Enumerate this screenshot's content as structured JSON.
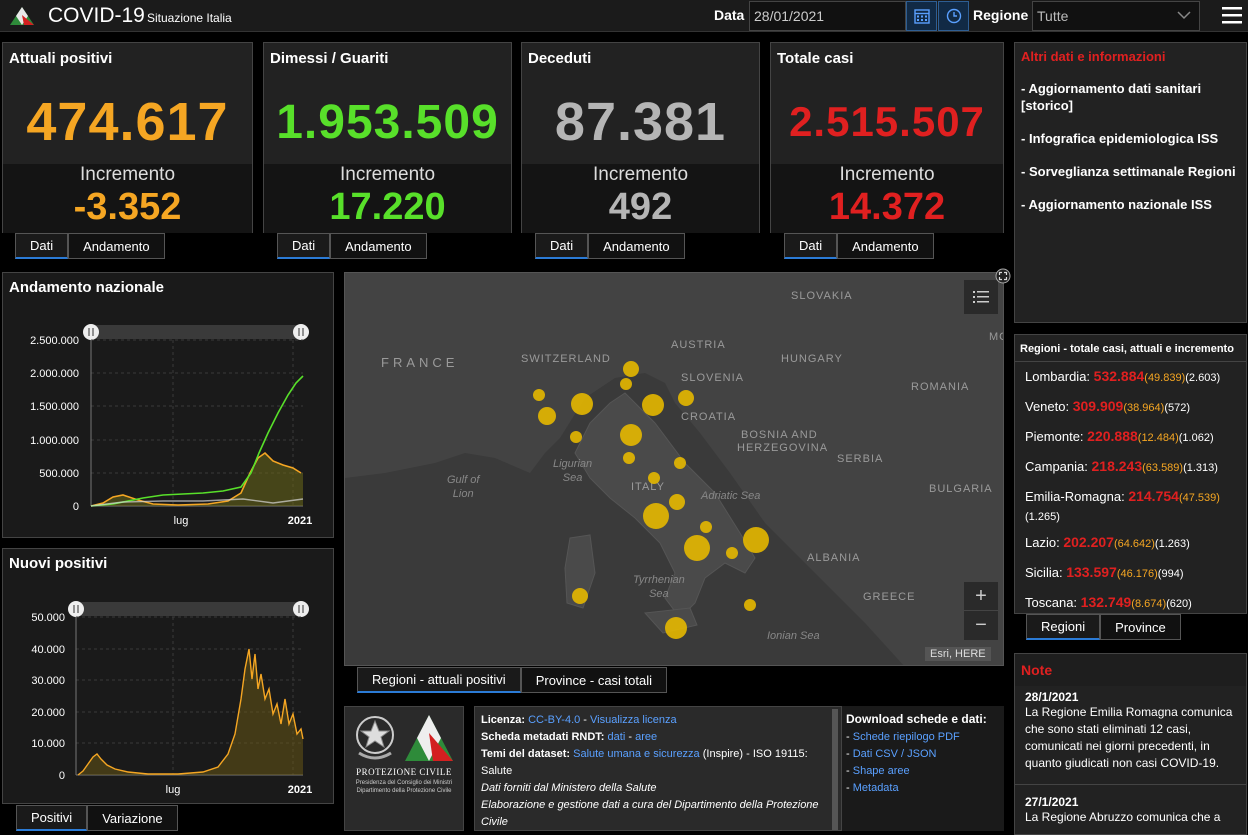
{
  "header": {
    "title": "COVID-19",
    "subtitle": "Situazione Italia",
    "date_label": "Data",
    "date_value": "28/01/2021",
    "region_label": "Regione",
    "region_value": "Tutte"
  },
  "cards": [
    {
      "title": "Attuali positivi",
      "value": "474.617",
      "inc_label": "Incremento",
      "increment": "-3.352",
      "color": "#f5a623",
      "tabs": [
        "Dati",
        "Andamento"
      ]
    },
    {
      "title": "Dimessi / Guariti",
      "value": "1.953.509",
      "inc_label": "Incremento",
      "increment": "17.220",
      "color": "#58e02a",
      "tabs": [
        "Dati",
        "Andamento"
      ]
    },
    {
      "title": "Deceduti",
      "value": "87.381",
      "inc_label": "Incremento",
      "increment": "492",
      "color": "#b5b5b5",
      "tabs": [
        "Dati",
        "Andamento"
      ]
    },
    {
      "title": "Totale casi",
      "value": "2.515.507",
      "inc_label": "Incremento",
      "increment": "14.372",
      "color": "#e02020",
      "tabs": [
        "Dati",
        "Andamento"
      ]
    }
  ],
  "andamento": {
    "title": "Andamento nazionale",
    "y_ticks": [
      "2.500.000",
      "2.000.000",
      "1.500.000",
      "1.000.000",
      "500.000",
      "0"
    ],
    "x_ticks": [
      "lug",
      "2021"
    ]
  },
  "nuovi": {
    "title": "Nuovi positivi",
    "y_ticks": [
      "50.000",
      "40.000",
      "30.000",
      "20.000",
      "10.000",
      "0"
    ],
    "x_ticks": [
      "lug",
      "2021"
    ],
    "tabs": [
      "Positivi",
      "Variazione"
    ]
  },
  "map": {
    "countries": [
      "FRANCE",
      "SWITZERLAND",
      "AUSTRIA",
      "SLOVAKIA",
      "HUNGARY",
      "SLOVENIA",
      "CROATIA",
      "ROMANIA",
      "BOSNIA AND",
      "HERZEGOVINA",
      "SERBIA",
      "BULGARIA",
      "ITALY",
      "ALBANIA",
      "GREECE",
      "MO"
    ],
    "seas": [
      "Gulf of",
      "Lion",
      "Ligurian",
      "Sea",
      "Adriatic Sea",
      "Tyrrhenian",
      "Sea",
      "Ionian Sea"
    ],
    "attribution": "Esri, HERE",
    "zoom_in": "+",
    "zoom_out": "−",
    "tabs": [
      "Regioni - attuali positivi",
      "Province - casi totali"
    ]
  },
  "info": {
    "licenza_label": "Licenza:",
    "licenza_value": "CC-BY-4.0",
    "licenza_link": "Visualizza licenza",
    "rndt_label": "Scheda metadati RNDT:",
    "rndt_dati": "dati",
    "rndt_aree": "aree",
    "temi_label": "Temi del dataset:",
    "temi_link": "Salute umana e sicurezza",
    "temi_rest": "(Inspire) - ISO 19115:",
    "temi_salute": "Salute",
    "fonte": "Dati forniti dal Ministero della Salute",
    "elaborazione": "Elaborazione e gestione dati a cura del Dipartimento della Protezione Civile"
  },
  "logos": {
    "pc_name": "PROTEZIONE CIVILE",
    "pc_sub1": "Presidenza del Consiglio dei Ministri",
    "pc_sub2": "Dipartimento della Protezione Civile"
  },
  "downloads": {
    "title": "Download schede e dati:",
    "items": [
      "Schede riepilogo PDF",
      "Dati CSV / JSON",
      "Shape aree",
      "Metadata"
    ]
  },
  "altri": {
    "title": "Altri dati e informazioni",
    "items": [
      "Aggiornamento dati sanitari [storico]",
      "Infografica epidemiologica ISS",
      "Sorveglianza settimanale Regioni",
      "Aggiornamento nazionale ISS"
    ]
  },
  "regioni": {
    "title": "Regioni - totale casi, attuali e incremento",
    "rows": [
      {
        "name": "Lombardia:",
        "total": "532.884",
        "attuali": "(49.839)",
        "inc": "(2.603)"
      },
      {
        "name": "Veneto:",
        "total": "309.909",
        "attuali": "(38.964)",
        "inc": "(572)"
      },
      {
        "name": "Piemonte:",
        "total": "220.888",
        "attuali": "(12.484)",
        "inc": "(1.062)"
      },
      {
        "name": "Campania:",
        "total": "218.243",
        "attuali": "(63.589)",
        "inc": "(1.313)"
      },
      {
        "name": "Emilia-Romagna:",
        "total": "214.754",
        "attuali": "(47.539)",
        "inc": "(1.265)"
      },
      {
        "name": "Lazio:",
        "total": "202.207",
        "attuali": "(64.642)",
        "inc": "(1.263)"
      },
      {
        "name": "Sicilia:",
        "total": "133.597",
        "attuali": "(46.176)",
        "inc": "(994)"
      },
      {
        "name": "Toscana:",
        "total": "132.749",
        "attuali": "(8.674)",
        "inc": "(620)"
      }
    ],
    "tabs": [
      "Regioni",
      "Province"
    ]
  },
  "note": {
    "title": "Note",
    "items": [
      {
        "date": "28/1/2021",
        "text": "La Regione Emilia Romagna comunica che sono stati eliminati 12 casi, comunicati nei giorni precedenti, in quanto giudicati non casi COVID-19."
      },
      {
        "date": "27/1/2021",
        "text": "La Regione Abruzzo comunica che a"
      }
    ]
  },
  "icons": {
    "logo": "italy-logo-icon",
    "calendar": "calendar-icon",
    "clock": "clock-icon",
    "menu": "hamburger-menu-icon",
    "legend": "legend-list-icon",
    "expand": "expand-icon"
  }
}
